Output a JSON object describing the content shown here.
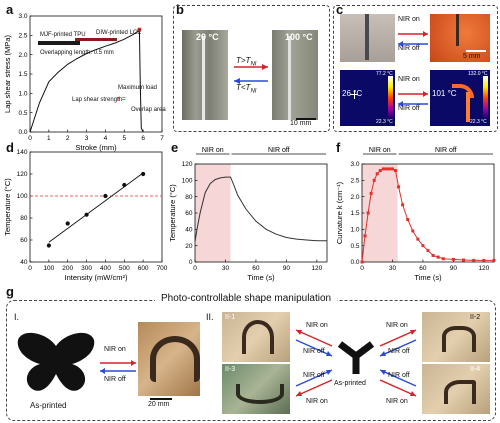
{
  "panels": {
    "a": {
      "label": "a",
      "chart_data": {
        "type": "line",
        "xlabel": "Stroke (mm)",
        "ylabel": "Lap shear stress (MPa)",
        "xlim": [
          0,
          7
        ],
        "ylim": [
          0,
          3.0
        ],
        "xticks": [
          "0",
          "1",
          "2",
          "3",
          "4",
          "5",
          "6",
          "7"
        ],
        "yticks": [
          "0.0",
          "0.5",
          "1.0",
          "1.5",
          "2.0",
          "2.5",
          "3.0"
        ],
        "x": [
          0.0,
          0.2,
          0.5,
          1.0,
          1.5,
          2.0,
          2.5,
          3.0,
          3.5,
          4.0,
          4.5,
          5.0,
          5.5,
          5.7,
          5.8,
          5.85,
          5.9,
          6.0
        ],
        "y": [
          0.0,
          0.3,
          0.75,
          1.3,
          1.55,
          1.75,
          1.9,
          2.03,
          2.13,
          2.22,
          2.3,
          2.4,
          2.53,
          2.6,
          2.65,
          1.2,
          0.1,
          0.0
        ],
        "annotations": {
          "mjf": "MJF-printed TPU",
          "diw": "DIW-printed LCE",
          "overlap": "Overlapping length: 0.5 mm",
          "formula_label": "Lap shear strength",
          "formula_tau": "τ =",
          "formula_num": "Maximum load",
          "formula_den": "Overlap area"
        }
      }
    },
    "b": {
      "label": "b",
      "temp_low": "20 °C",
      "temp_high": "100 °C",
      "arrow_top": "T>T",
      "arrow_top_sub": "NI",
      "arrow_bot": "T<T",
      "arrow_bot_sub": "NI",
      "scale": "10 mm"
    },
    "c": {
      "label": "c",
      "nir_on": "NIR on",
      "nir_off": "NIR off",
      "scale": "5 mm",
      "ir_left_temp": "26 °C",
      "ir_left_max": "77.2 °C",
      "ir_left_min": "22.3 °C",
      "ir_right_temp": "101 °C",
      "ir_right_max": "132.0 °C",
      "ir_right_min": "22.3 °C"
    },
    "d": {
      "label": "d",
      "chart_data": {
        "type": "scatter",
        "xlabel": "Intensity (mW/cm²)",
        "ylabel": "Temperature (°C)",
        "xlim": [
          0,
          700
        ],
        "ylim": [
          40,
          140
        ],
        "xticks": [
          "0",
          "100",
          "200",
          "300",
          "400",
          "500",
          "600",
          "700"
        ],
        "yticks": [
          "40",
          "60",
          "80",
          "100",
          "120",
          "140"
        ],
        "x": [
          100,
          200,
          300,
          400,
          500,
          600
        ],
        "y": [
          55,
          75,
          83,
          100,
          110,
          120
        ],
        "fit_line": {
          "x": [
            100,
            600
          ],
          "y": [
            58,
            121
          ]
        },
        "reference_line_y": 100
      }
    },
    "e": {
      "label": "e",
      "nir_on": "NIR on",
      "nir_off": "NIR off",
      "chart_data": {
        "type": "line",
        "xlabel": "Time (s)",
        "ylabel": "Temperature (°C)",
        "xlim": [
          0,
          130
        ],
        "ylim": [
          0,
          120
        ],
        "xticks": [
          "0",
          "30",
          "60",
          "90",
          "120"
        ],
        "yticks": [
          "0",
          "20",
          "40",
          "60",
          "80",
          "100",
          "120"
        ],
        "nir_on_range": [
          0,
          35
        ],
        "x": [
          0,
          2,
          5,
          10,
          15,
          20,
          25,
          30,
          35,
          38,
          42,
          50,
          60,
          70,
          80,
          90,
          100,
          110,
          120,
          130
        ],
        "y": [
          25,
          40,
          60,
          85,
          96,
          101,
          103,
          104,
          104,
          95,
          82,
          65,
          50,
          40,
          34,
          30,
          28,
          27,
          26,
          26
        ]
      }
    },
    "f": {
      "label": "f",
      "nir_on": "NIR on",
      "nir_off": "NIR off",
      "chart_data": {
        "type": "line",
        "xlabel": "Time (s)",
        "ylabel": "Curvature k (cm⁻¹)",
        "xlim": [
          0,
          130
        ],
        "ylim": [
          0,
          3.0
        ],
        "xticks": [
          "0",
          "30",
          "60",
          "90",
          "120"
        ],
        "yticks": [
          "0.0",
          "0.5",
          "1.0",
          "1.5",
          "2.0",
          "2.5",
          "3.0"
        ],
        "nir_on_range": [
          0,
          35
        ],
        "x": [
          0,
          3,
          6,
          9,
          12,
          15,
          18,
          21,
          24,
          27,
          30,
          33,
          36,
          40,
          45,
          50,
          55,
          60,
          65,
          70,
          75,
          80,
          90,
          100,
          110,
          120,
          130
        ],
        "y": [
          0.0,
          0.8,
          1.5,
          2.1,
          2.5,
          2.7,
          2.8,
          2.85,
          2.85,
          2.85,
          2.85,
          2.8,
          2.3,
          1.75,
          1.3,
          0.95,
          0.7,
          0.5,
          0.35,
          0.2,
          0.15,
          0.1,
          0.08,
          0.06,
          0.05,
          0.05,
          0.05
        ]
      }
    },
    "g": {
      "label": "g",
      "title": "Photo-controllable shape manipulation",
      "section1": "I.",
      "section2": "II.",
      "as_printed": "As-printed",
      "nir_on": "NIR on",
      "nir_off": "NIR off",
      "scale": "20 mm",
      "as_printed_center": "As-printed",
      "ii1": "II-1",
      "ii2": "II-2",
      "ii3": "II-3",
      "ii4": "II-4"
    }
  },
  "colors": {
    "red_arrow": "#d4242b",
    "blue_arrow": "#2a4bd7",
    "nir_band": "#f6d6d6",
    "plot_red": "#e0312c",
    "dotted_red": "#e0312c"
  }
}
